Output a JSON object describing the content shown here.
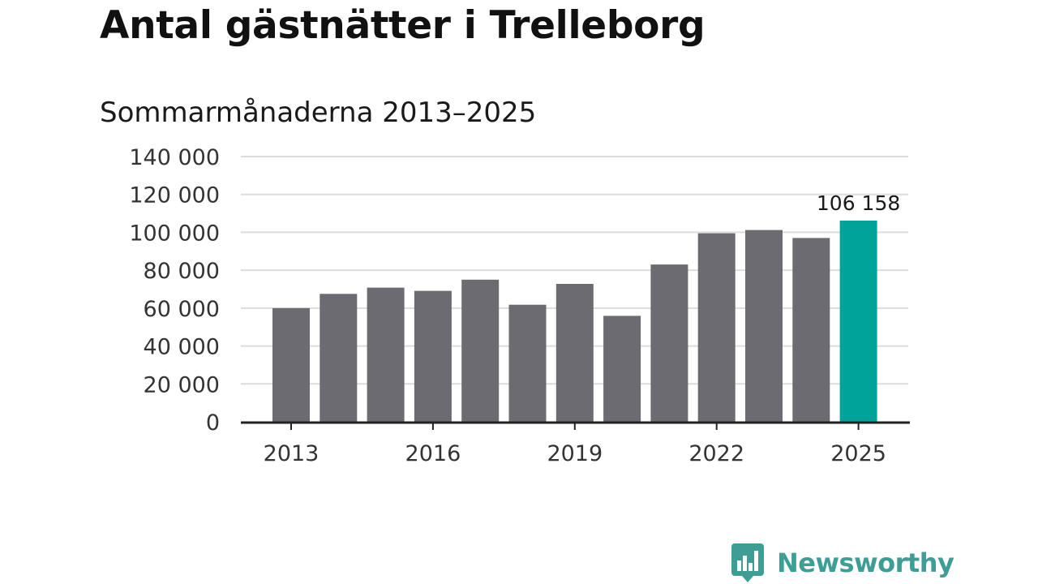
{
  "title": "Antal gästnätter i Trelleborg",
  "subtitle": "Sommarmånaderna 2013–2025",
  "brand": {
    "name": "Newsworthy",
    "icon": "newsworthy-logo-icon",
    "color": "#3e9e96"
  },
  "colors": {
    "bar": "#6c6b72",
    "highlight": "#00a39a",
    "grid": "#dcdcdc",
    "axis": "#222222",
    "text": "#333333"
  },
  "chart_data": {
    "type": "bar",
    "title": "Antal gästnätter i Trelleborg",
    "subtitle": "Sommarmånaderna 2013–2025",
    "xlabel": "",
    "ylabel": "",
    "categories": [
      "2013",
      "2014",
      "2015",
      "2016",
      "2017",
      "2018",
      "2019",
      "2020",
      "2021",
      "2022",
      "2023",
      "2024",
      "2025"
    ],
    "values": [
      60000,
      67500,
      70800,
      69100,
      75000,
      61800,
      72800,
      55900,
      83000,
      99500,
      101200,
      97000,
      106158
    ],
    "ylim": [
      0,
      140000
    ],
    "yticks": [
      0,
      20000,
      40000,
      60000,
      80000,
      100000,
      120000,
      140000
    ],
    "ytick_labels": [
      "0",
      "20 000",
      "40 000",
      "60 000",
      "80 000",
      "100 000",
      "120 000",
      "140 000"
    ],
    "xtick_labels": [
      "2013",
      "2016",
      "2019",
      "2022",
      "2025"
    ],
    "highlight_index": 12,
    "annotation": "106 158",
    "grid": true,
    "legend": "none"
  }
}
